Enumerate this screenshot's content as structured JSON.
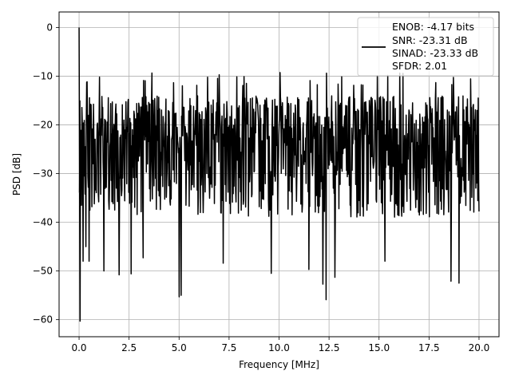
{
  "chart_data": {
    "type": "line",
    "title": "",
    "xlabel": "Frequency [MHz]",
    "ylabel": "PSD [dB]",
    "xlim": [
      -1.0,
      21.0
    ],
    "ylim": [
      -63.5,
      3.2
    ],
    "xticks": [
      0.0,
      2.5,
      5.0,
      7.5,
      10.0,
      12.5,
      15.0,
      17.5,
      20.0
    ],
    "xtick_labels": [
      "0.0",
      "2.5",
      "5.0",
      "7.5",
      "10.0",
      "12.5",
      "15.0",
      "17.5",
      "20.0"
    ],
    "yticks": [
      0,
      -10,
      -20,
      -30,
      -40,
      -50,
      -60
    ],
    "ytick_labels": [
      "0",
      "−10",
      "−20",
      "−30",
      "−40",
      "−50",
      "−60"
    ],
    "grid": true,
    "legend_position": "upper right",
    "legend_lines": [
      "ENOB: -4.17 bits",
      "SNR: -23.31 dB",
      "SINAD: -23.33 dB",
      "SFDR: 2.01"
    ],
    "series": [
      {
        "color": "#000000",
        "x_range": [
          0.0,
          20.0
        ],
        "points": 1000,
        "description_values": {
          "dc_spike": 0.0,
          "dc_dip": -60.3,
          "typical_upper_envelope": -14.5,
          "typical_lower_envelope": -40.0,
          "peak_near_7MHz": -9.7,
          "notable_dips": [
            {
              "x": 0.2,
              "y": -48.0
            },
            {
              "x": 0.35,
              "y": -45.0
            },
            {
              "x": 0.5,
              "y": -48.0
            },
            {
              "x": 1.25,
              "y": -50.0
            },
            {
              "x": 2.0,
              "y": -50.8
            },
            {
              "x": 2.6,
              "y": -50.6
            },
            {
              "x": 3.2,
              "y": -47.3
            },
            {
              "x": 5.0,
              "y": -55.3
            },
            {
              "x": 5.1,
              "y": -55.0
            },
            {
              "x": 7.2,
              "y": -48.4
            },
            {
              "x": 9.6,
              "y": -50.5
            },
            {
              "x": 11.5,
              "y": -49.7
            },
            {
              "x": 12.2,
              "y": -52.7
            },
            {
              "x": 12.35,
              "y": -55.9
            },
            {
              "x": 12.8,
              "y": -51.3
            },
            {
              "x": 15.3,
              "y": -48.0
            },
            {
              "x": 18.6,
              "y": -52.1
            },
            {
              "x": 19.0,
              "y": -52.5
            }
          ]
        }
      }
    ]
  }
}
